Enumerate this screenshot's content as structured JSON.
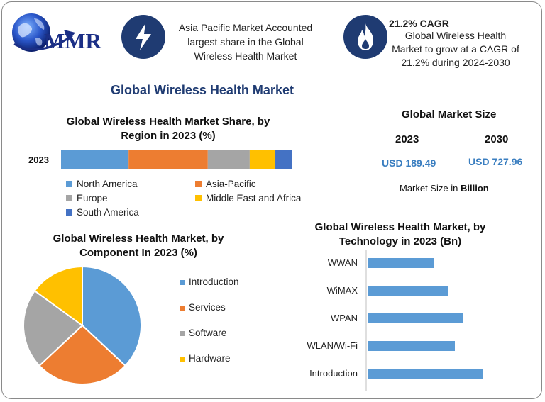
{
  "brand": {
    "logo_text": "MMR"
  },
  "highlights": [
    {
      "icon": "lightning-bolt-icon",
      "text": "Asia Pacific Market Accounted largest share in the Global Wireless Health Market"
    },
    {
      "icon": "flame-icon",
      "title": "21.2% CAGR",
      "text": "Global Wireless Health Market to grow at a CAGR of 21.2% during 2024-2030"
    }
  ],
  "main_title": "Global Wireless Health Market",
  "market_size": {
    "title": "Global Market Size",
    "year1": "2023",
    "value1": "USD 189.49",
    "year2": "2030",
    "value2": "USD 727.96",
    "note_prefix": "Market Size in ",
    "note_unit": "Billion"
  },
  "colors": {
    "accent": "#1f3b72",
    "north_america": "#5b9bd5",
    "asia_pacific": "#ed7d31",
    "europe": "#a5a5a5",
    "middle_east_africa": "#ffc000",
    "south_america": "#4472c4"
  },
  "chart_data": [
    {
      "type": "bar",
      "orientation": "horizontal-stacked",
      "title": "Global Wireless Health Market Share, by Region in 2023 (%)",
      "categories": [
        "2023"
      ],
      "series": [
        {
          "name": "North America",
          "values": [
            29
          ]
        },
        {
          "name": "Asia-Pacific",
          "values": [
            34
          ]
        },
        {
          "name": "Europe",
          "values": [
            18
          ]
        },
        {
          "name": "Middle East and Africa",
          "values": [
            11
          ]
        },
        {
          "name": "South America",
          "values": [
            7
          ]
        }
      ],
      "legend": "bottom"
    },
    {
      "type": "pie",
      "title": "Global Wireless Health Market, by Component In 2023 (%)",
      "labels": [
        "Introduction",
        "Services",
        "Software",
        "Hardware"
      ],
      "values": [
        37,
        26,
        22,
        15
      ],
      "colors": [
        "#5b9bd5",
        "#ed7d31",
        "#a5a5a5",
        "#ffc000"
      ],
      "legend": "right"
    },
    {
      "type": "bar",
      "orientation": "horizontal",
      "title": "Global Wireless Health Market, by Technology in 2023 (Bn)",
      "categories": [
        "WWAN",
        "WiMAX",
        "WPAN",
        "WLAN/Wi-Fi",
        "Introduction"
      ],
      "values": [
        31,
        38,
        45,
        41,
        54
      ],
      "xlim": [
        0,
        60
      ]
    }
  ]
}
